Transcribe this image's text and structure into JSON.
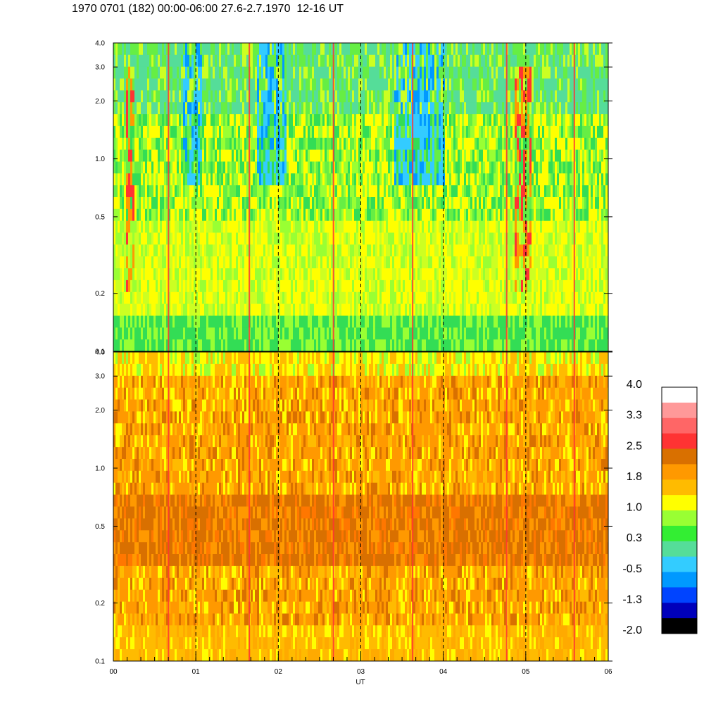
{
  "header": {
    "title": "1970 0701 (182) 00:00-06:00 27.6-2.7.1970  12-16 UT"
  },
  "chart_data": [
    {
      "type": "heatmap",
      "panel": "upper",
      "x_ticks": [
        "00",
        "01",
        "02",
        "03",
        "04",
        "05",
        "06"
      ],
      "xlim": [
        0,
        6
      ],
      "y_scale": "log",
      "ylim": [
        0.1,
        4.0
      ],
      "y_ticks": [
        "0.1",
        "0.2",
        "0.5",
        "1.0",
        "2.0",
        "3.0",
        "4.0"
      ],
      "dominant_levels": [
        "green",
        "yellow-green",
        "yellow"
      ],
      "features": "blue/cyan low-level patches above 1.0 near 01, 02, 03-04; red/orange streaks near 00:15, 04:45-05:00"
    },
    {
      "type": "heatmap",
      "panel": "lower",
      "x_ticks": [
        "00",
        "01",
        "02",
        "03",
        "04",
        "05",
        "06"
      ],
      "xlim": [
        0,
        6
      ],
      "xlabel": "UT",
      "y_scale": "log",
      "ylim": [
        0.1,
        4.0
      ],
      "y_ticks": [
        "0.1",
        "0.2",
        "0.5",
        "1.0",
        "2.0",
        "3.0",
        "4.0"
      ],
      "dominant_levels": [
        "orange",
        "amber",
        "yellow"
      ],
      "features": "dark orange band near 0.3-0.7; yellow/green speckle near top"
    }
  ],
  "colorbar": {
    "labels": [
      "4.0",
      "3.3",
      "2.5",
      "1.8",
      "1.0",
      "0.3",
      "-0.5",
      "-1.3",
      "-2.0"
    ],
    "colors": [
      "#ffffff",
      "#ff9999",
      "#ff6666",
      "#ff3333",
      "#d97000",
      "#ff9900",
      "#ffbb00",
      "#ffff00",
      "#99ff33",
      "#33ee33",
      "#55dd99",
      "#33ccff",
      "#0099ff",
      "#0044ff",
      "#0000bb",
      "#000000"
    ]
  },
  "colors": {
    "upper_palette": [
      "#33dd55",
      "#66ee44",
      "#99ff33",
      "#ccff22",
      "#ffff00",
      "#ffcc00",
      "#55dd99",
      "#33ccff",
      "#0099ff",
      "#ff9900",
      "#ff3333"
    ],
    "lower_palette": [
      "#ff9900",
      "#ffbb00",
      "#ffaa00",
      "#d97000",
      "#ffff00",
      "#ff7700",
      "#99ff33",
      "#ff3333"
    ]
  }
}
